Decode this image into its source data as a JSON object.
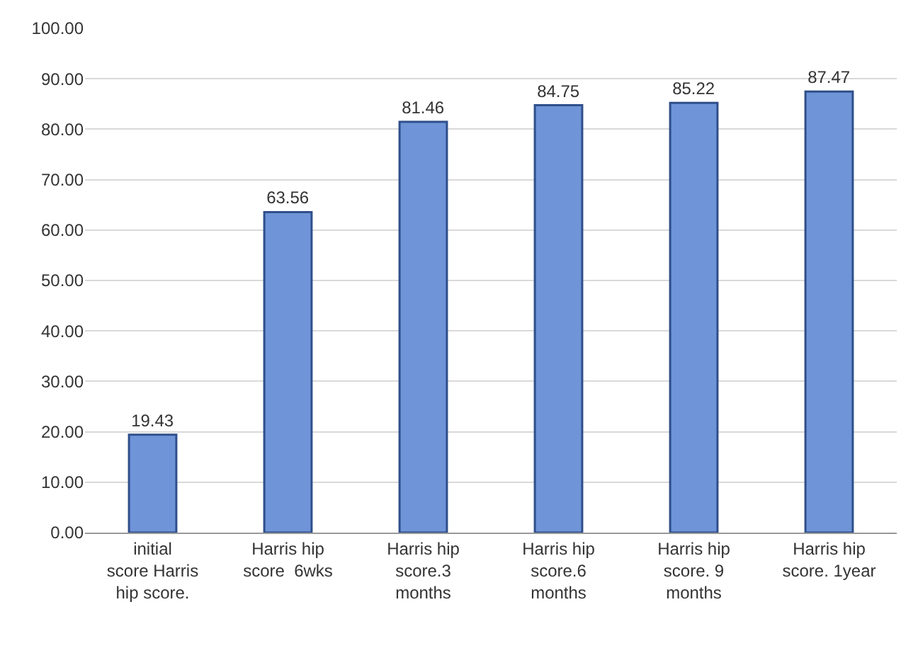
{
  "chart_data": {
    "type": "bar",
    "categories": [
      "initial score Harris hip score.",
      "Harris hip score  6wks",
      "Harris hip score.3 months",
      "Harris hip score.6 months",
      "Harris hip score. 9 months",
      "Harris hip score. 1year"
    ],
    "values": [
      19.43,
      63.56,
      81.46,
      84.75,
      85.22,
      87.47
    ],
    "color": "#6f94d8",
    "ylim": [
      0,
      100
    ],
    "yticks": [
      {
        "value": 0,
        "label": "0.00"
      },
      {
        "value": 10,
        "label": "10.00"
      },
      {
        "value": 20,
        "label": "20.00"
      },
      {
        "value": 30,
        "label": "30.00"
      },
      {
        "value": 40,
        "label": "40.00"
      },
      {
        "value": 50,
        "label": "50.00"
      },
      {
        "value": 60,
        "label": "60.00"
      },
      {
        "value": 70,
        "label": "70.00"
      },
      {
        "value": 80,
        "label": "80.00"
      },
      {
        "value": 90,
        "label": "90.00"
      },
      {
        "value": 100,
        "label": "100.00"
      }
    ],
    "grid": "y",
    "data_labels": true
  }
}
